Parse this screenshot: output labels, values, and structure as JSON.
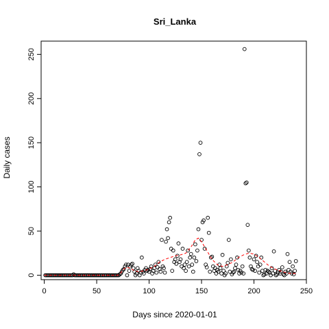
{
  "chart_data": {
    "type": "scatter",
    "title": "Sri_Lanka",
    "xlabel": "Days since 2020-01-01",
    "ylabel": "Daily cases",
    "xlim": [
      -3,
      250
    ],
    "ylim": [
      -5,
      265
    ],
    "xticks": [
      0,
      50,
      100,
      150,
      200,
      250
    ],
    "yticks": [
      0,
      50,
      100,
      150,
      200,
      250
    ],
    "grid": false,
    "series": [
      {
        "marker": "open-circle",
        "color": "#000000",
        "points": [
          [
            1,
            0
          ],
          [
            2,
            0
          ],
          [
            3,
            0
          ],
          [
            4,
            0
          ],
          [
            5,
            0
          ],
          [
            6,
            0
          ],
          [
            7,
            0
          ],
          [
            8,
            0
          ],
          [
            9,
            0
          ],
          [
            10,
            0
          ],
          [
            11,
            0
          ],
          [
            12,
            0
          ],
          [
            13,
            0
          ],
          [
            14,
            0
          ],
          [
            15,
            0
          ],
          [
            16,
            0
          ],
          [
            17,
            0
          ],
          [
            18,
            0
          ],
          [
            19,
            0
          ],
          [
            20,
            0
          ],
          [
            21,
            0
          ],
          [
            22,
            0
          ],
          [
            23,
            0
          ],
          [
            24,
            0
          ],
          [
            25,
            0
          ],
          [
            26,
            0
          ],
          [
            27,
            0
          ],
          [
            28,
            1
          ],
          [
            29,
            0
          ],
          [
            30,
            0
          ],
          [
            31,
            0
          ],
          [
            32,
            0
          ],
          [
            33,
            0
          ],
          [
            34,
            0
          ],
          [
            35,
            0
          ],
          [
            36,
            0
          ],
          [
            37,
            0
          ],
          [
            38,
            0
          ],
          [
            39,
            0
          ],
          [
            40,
            0
          ],
          [
            41,
            0
          ],
          [
            42,
            0
          ],
          [
            43,
            0
          ],
          [
            44,
            0
          ],
          [
            45,
            0
          ],
          [
            46,
            0
          ],
          [
            47,
            0
          ],
          [
            48,
            0
          ],
          [
            49,
            0
          ],
          [
            50,
            0
          ],
          [
            51,
            0
          ],
          [
            52,
            0
          ],
          [
            53,
            0
          ],
          [
            54,
            0
          ],
          [
            55,
            0
          ],
          [
            56,
            0
          ],
          [
            57,
            0
          ],
          [
            58,
            0
          ],
          [
            59,
            0
          ],
          [
            60,
            0
          ],
          [
            61,
            0
          ],
          [
            62,
            0
          ],
          [
            63,
            0
          ],
          [
            64,
            0
          ],
          [
            65,
            0
          ],
          [
            66,
            0
          ],
          [
            67,
            0
          ],
          [
            68,
            0
          ],
          [
            69,
            0
          ],
          [
            70,
            0
          ],
          [
            71,
            0
          ],
          [
            72,
            1
          ],
          [
            73,
            2
          ],
          [
            74,
            4
          ],
          [
            75,
            6
          ],
          [
            76,
            7
          ],
          [
            77,
            10
          ],
          [
            78,
            12
          ],
          [
            79,
            0
          ],
          [
            80,
            12
          ],
          [
            81,
            5
          ],
          [
            82,
            10
          ],
          [
            83,
            12
          ],
          [
            84,
            13
          ],
          [
            85,
            8
          ],
          [
            86,
            4
          ],
          [
            87,
            0
          ],
          [
            88,
            2
          ],
          [
            89,
            8
          ],
          [
            90,
            5
          ],
          [
            91,
            0
          ],
          [
            92,
            3
          ],
          [
            93,
            20
          ],
          [
            94,
            4
          ],
          [
            95,
            2
          ],
          [
            96,
            6
          ],
          [
            97,
            8
          ],
          [
            98,
            5
          ],
          [
            99,
            6
          ],
          [
            100,
            4
          ],
          [
            101,
            7
          ],
          [
            102,
            10
          ],
          [
            103,
            2
          ],
          [
            104,
            5
          ],
          [
            105,
            8
          ],
          [
            106,
            12
          ],
          [
            107,
            3
          ],
          [
            108,
            9
          ],
          [
            109,
            15
          ],
          [
            110,
            7
          ],
          [
            111,
            4
          ],
          [
            112,
            40
          ],
          [
            113,
            10
          ],
          [
            114,
            8
          ],
          [
            115,
            3
          ],
          [
            116,
            38
          ],
          [
            117,
            52
          ],
          [
            118,
            42
          ],
          [
            119,
            60
          ],
          [
            120,
            65
          ],
          [
            121,
            30
          ],
          [
            122,
            5
          ],
          [
            123,
            28
          ],
          [
            124,
            15
          ],
          [
            125,
            18
          ],
          [
            126,
            13
          ],
          [
            127,
            22
          ],
          [
            128,
            36
          ],
          [
            129,
            15
          ],
          [
            130,
            18
          ],
          [
            131,
            10
          ],
          [
            132,
            30
          ],
          [
            133,
            8
          ],
          [
            134,
            12
          ],
          [
            135,
            5
          ],
          [
            136,
            15
          ],
          [
            137,
            28
          ],
          [
            138,
            10
          ],
          [
            139,
            20
          ],
          [
            140,
            24
          ],
          [
            141,
            12
          ],
          [
            142,
            4
          ],
          [
            143,
            20
          ],
          [
            144,
            35
          ],
          [
            145,
            16
          ],
          [
            146,
            28
          ],
          [
            147,
            52
          ],
          [
            148,
            137
          ],
          [
            149,
            150
          ],
          [
            150,
            40
          ],
          [
            151,
            60
          ],
          [
            152,
            62
          ],
          [
            153,
            30
          ],
          [
            154,
            12
          ],
          [
            155,
            9
          ],
          [
            156,
            65
          ],
          [
            157,
            48
          ],
          [
            158,
            4
          ],
          [
            159,
            20
          ],
          [
            160,
            21
          ],
          [
            161,
            10
          ],
          [
            162,
            5
          ],
          [
            163,
            8
          ],
          [
            164,
            2
          ],
          [
            165,
            6
          ],
          [
            166,
            4
          ],
          [
            167,
            12
          ],
          [
            168,
            8
          ],
          [
            169,
            2
          ],
          [
            170,
            23
          ],
          [
            171,
            5
          ],
          [
            172,
            0
          ],
          [
            173,
            2
          ],
          [
            174,
            10
          ],
          [
            175,
            14
          ],
          [
            176,
            40
          ],
          [
            177,
            4
          ],
          [
            178,
            18
          ],
          [
            179,
            1
          ],
          [
            180,
            3
          ],
          [
            181,
            4
          ],
          [
            182,
            8
          ],
          [
            183,
            12
          ],
          [
            184,
            20
          ],
          [
            185,
            6
          ],
          [
            186,
            2
          ],
          [
            187,
            5
          ],
          [
            188,
            3
          ],
          [
            189,
            10
          ],
          [
            190,
            2
          ],
          [
            191,
            256
          ],
          [
            192,
            104
          ],
          [
            193,
            105
          ],
          [
            194,
            57
          ],
          [
            195,
            28
          ],
          [
            196,
            20
          ],
          [
            197,
            10
          ],
          [
            198,
            7
          ],
          [
            199,
            6
          ],
          [
            200,
            18
          ],
          [
            201,
            5
          ],
          [
            202,
            22
          ],
          [
            203,
            15
          ],
          [
            204,
            10
          ],
          [
            205,
            3
          ],
          [
            206,
            12
          ],
          [
            207,
            20
          ],
          [
            208,
            5
          ],
          [
            209,
            0
          ],
          [
            210,
            1
          ],
          [
            211,
            6
          ],
          [
            212,
            2
          ],
          [
            213,
            5
          ],
          [
            214,
            4
          ],
          [
            215,
            3
          ],
          [
            216,
            0
          ],
          [
            217,
            8
          ],
          [
            218,
            2
          ],
          [
            219,
            27
          ],
          [
            220,
            5
          ],
          [
            221,
            0
          ],
          [
            222,
            1
          ],
          [
            223,
            3
          ],
          [
            224,
            6
          ],
          [
            225,
            2
          ],
          [
            226,
            4
          ],
          [
            227,
            9
          ],
          [
            228,
            1
          ],
          [
            229,
            0
          ],
          [
            230,
            4
          ],
          [
            231,
            2
          ],
          [
            232,
            24
          ],
          [
            233,
            6
          ],
          [
            234,
            15
          ],
          [
            235,
            4
          ],
          [
            236,
            2
          ],
          [
            237,
            10
          ],
          [
            238,
            1
          ],
          [
            239,
            5
          ],
          [
            240,
            16
          ]
        ]
      },
      {
        "style": "dashed-line",
        "color": "#ff0000",
        "points": [
          [
            0,
            0
          ],
          [
            10,
            0
          ],
          [
            20,
            0
          ],
          [
            30,
            0
          ],
          [
            40,
            0
          ],
          [
            50,
            0
          ],
          [
            60,
            0
          ],
          [
            70,
            0
          ],
          [
            72,
            1
          ],
          [
            75,
            6
          ],
          [
            78,
            9
          ],
          [
            82,
            8
          ],
          [
            86,
            5
          ],
          [
            90,
            4
          ],
          [
            95,
            5
          ],
          [
            100,
            7
          ],
          [
            105,
            10
          ],
          [
            110,
            15
          ],
          [
            115,
            18
          ],
          [
            120,
            20
          ],
          [
            125,
            22
          ],
          [
            130,
            23
          ],
          [
            135,
            25
          ],
          [
            140,
            32
          ],
          [
            144,
            40
          ],
          [
            147,
            42
          ],
          [
            150,
            38
          ],
          [
            155,
            28
          ],
          [
            160,
            18
          ],
          [
            165,
            12
          ],
          [
            170,
            10
          ],
          [
            175,
            12
          ],
          [
            180,
            15
          ],
          [
            185,
            20
          ],
          [
            190,
            23
          ],
          [
            195,
            25
          ],
          [
            200,
            24
          ],
          [
            205,
            20
          ],
          [
            210,
            15
          ],
          [
            215,
            10
          ],
          [
            220,
            7
          ],
          [
            225,
            5
          ],
          [
            230,
            3
          ],
          [
            235,
            2
          ],
          [
            240,
            2
          ]
        ]
      }
    ]
  }
}
